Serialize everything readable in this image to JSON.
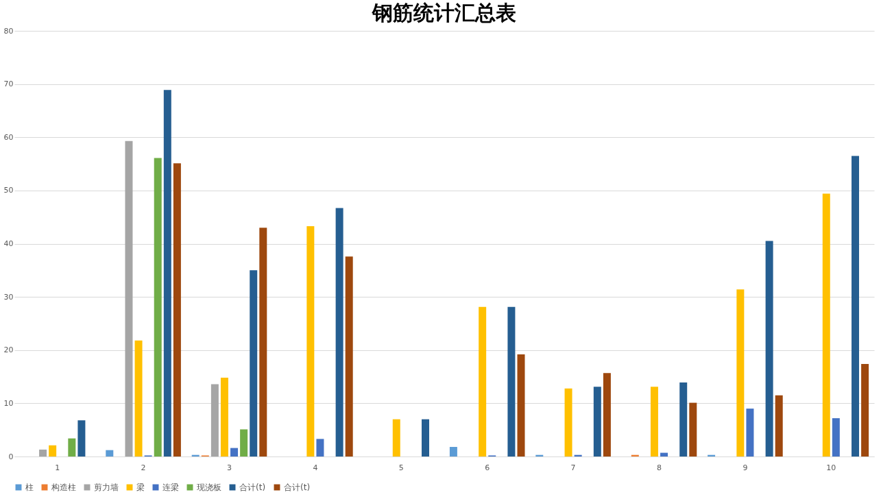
{
  "chart_data": {
    "type": "bar",
    "title": "钢筋统计汇总表",
    "categories": [
      "1",
      "2",
      "3",
      "4",
      "5",
      "6",
      "7",
      "8",
      "9",
      "10"
    ],
    "series": [
      {
        "name": "柱",
        "color": "#5b9bd5",
        "values": [
          null,
          1.2,
          0.3,
          null,
          null,
          1.8,
          0.3,
          null,
          0.3,
          null
        ]
      },
      {
        "name": "构造柱",
        "color": "#ed7d31",
        "values": [
          null,
          null,
          0.2,
          null,
          null,
          null,
          null,
          0.3,
          null,
          null
        ]
      },
      {
        "name": "剪力墙",
        "color": "#a5a5a5",
        "values": [
          1.3,
          59.3,
          13.6,
          null,
          null,
          null,
          null,
          null,
          null,
          null
        ]
      },
      {
        "name": "梁",
        "color": "#ffc000",
        "values": [
          2.1,
          21.8,
          14.8,
          43.3,
          7.0,
          28.1,
          12.8,
          13.1,
          31.4,
          49.4
        ]
      },
      {
        "name": "连梁",
        "color": "#4472c4",
        "values": [
          null,
          0.2,
          1.6,
          3.3,
          null,
          0.2,
          0.3,
          0.7,
          9.0,
          7.2
        ]
      },
      {
        "name": "现浇板",
        "color": "#70ad47",
        "values": [
          3.4,
          56.1,
          5.1,
          null,
          null,
          null,
          null,
          null,
          null,
          null
        ]
      },
      {
        "name": "合计(t)",
        "color": "#255e91",
        "values": [
          6.8,
          68.9,
          35.0,
          46.7,
          7.0,
          28.1,
          13.1,
          13.9,
          40.5,
          56.5
        ]
      },
      {
        "name": "合计(t)",
        "color": "#9e480e",
        "values": [
          null,
          55.1,
          43.0,
          37.6,
          null,
          19.2,
          15.7,
          10.1,
          11.5,
          17.4
        ]
      }
    ],
    "ylim": [
      0,
      80
    ],
    "yticks": [
      0,
      10,
      20,
      30,
      40,
      50,
      60,
      70,
      80
    ],
    "grid": "y",
    "legend": "bottom"
  }
}
